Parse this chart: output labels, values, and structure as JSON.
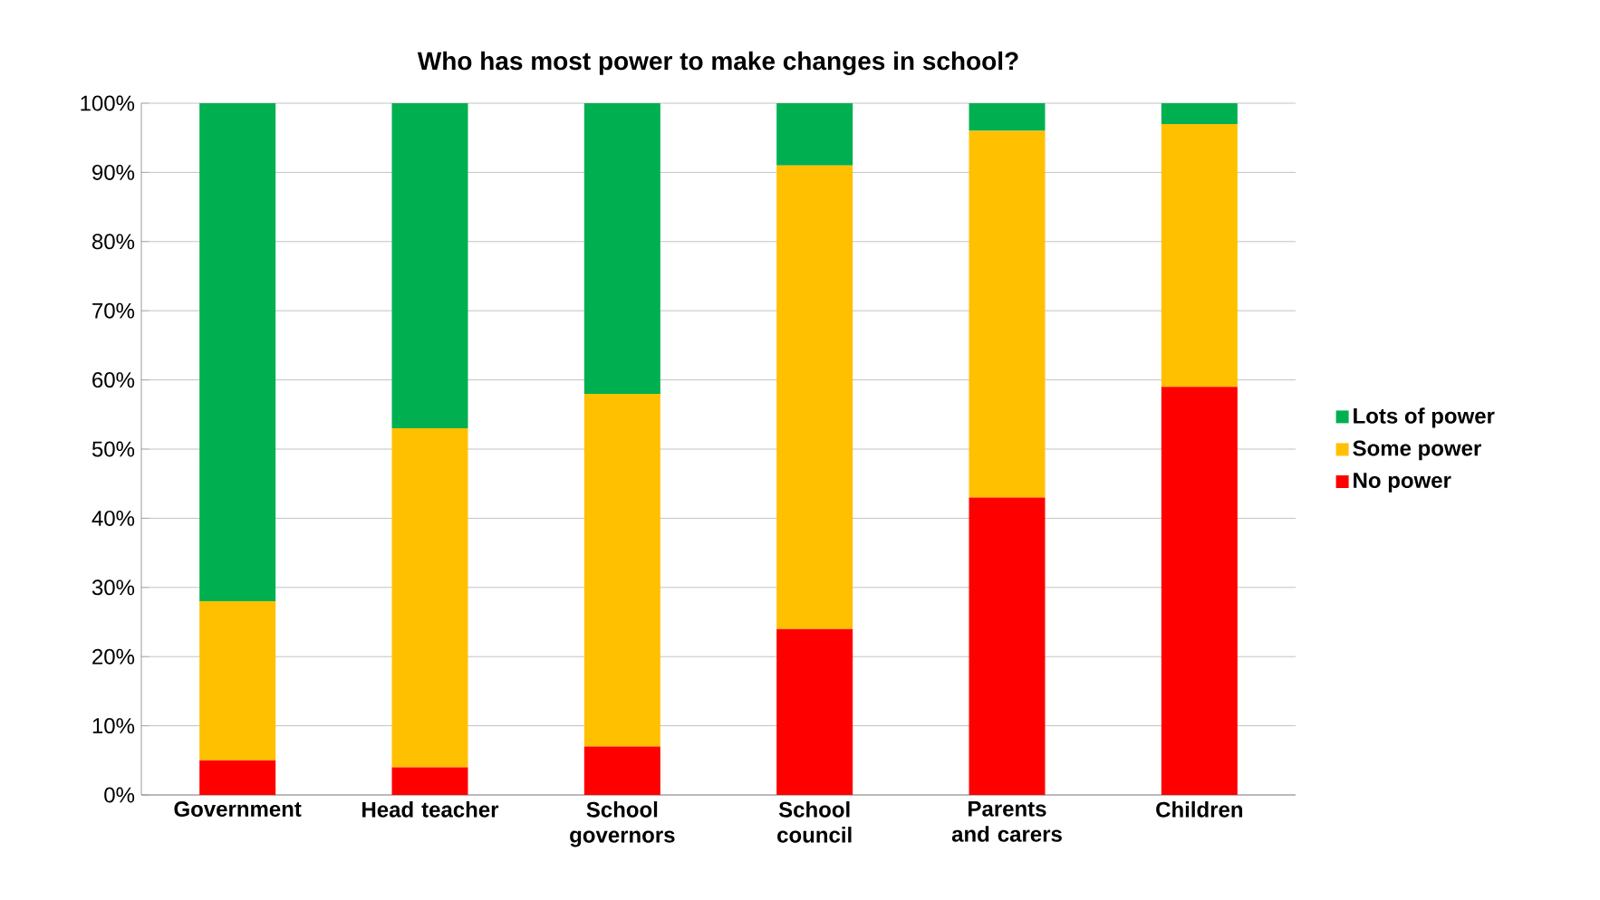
{
  "chart_data": {
    "type": "bar",
    "title": "Who has most power to make changes in school?",
    "categories": [
      "Government",
      "Head teacher",
      "School governors",
      "School council",
      "Parents and carers",
      "Children"
    ],
    "stacked": true,
    "series": [
      {
        "name": "No power",
        "color": "#ff0000",
        "values": [
          5,
          4,
          7,
          24,
          43,
          59
        ]
      },
      {
        "name": "Some power",
        "color": "#ffc000",
        "values": [
          23,
          49,
          51,
          67,
          53,
          38
        ]
      },
      {
        "name": "Lots of power",
        "color": "#00b050",
        "values": [
          72,
          47,
          42,
          9,
          4,
          3
        ]
      }
    ],
    "ylim": [
      0,
      100
    ],
    "yticks": [
      {
        "value": 0,
        "label": "0%"
      },
      {
        "value": 10,
        "label": "10%"
      },
      {
        "value": 20,
        "label": "20%"
      },
      {
        "value": 30,
        "label": "30%"
      },
      {
        "value": 40,
        "label": "40%"
      },
      {
        "value": 50,
        "label": "50%"
      },
      {
        "value": 60,
        "label": "60%"
      },
      {
        "value": 70,
        "label": "70%"
      },
      {
        "value": 80,
        "label": "80%"
      },
      {
        "value": 90,
        "label": "90%"
      },
      {
        "value": 100,
        "label": "100%"
      }
    ],
    "grid": "y",
    "legend": "right"
  }
}
